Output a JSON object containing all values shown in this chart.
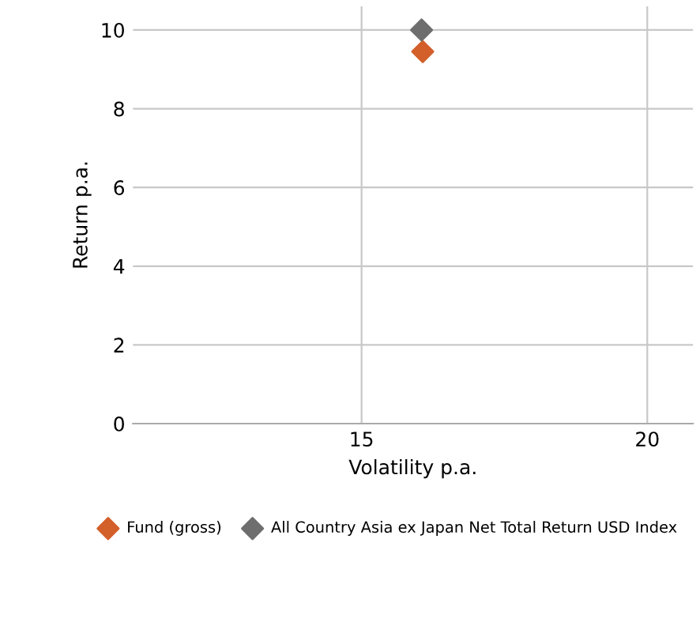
{
  "chart_data": {
    "type": "scatter",
    "xlabel": "Volatility p.a.",
    "ylabel": "Return p.a.",
    "series": [
      {
        "name": "Fund (gross)",
        "color": "#d35f2b",
        "x": [
          16.07
        ],
        "values": [
          9.45
        ]
      },
      {
        "name": "All Country Asia ex Japan Net Total Return USD Index",
        "color": "#6e6e6e",
        "x": [
          16.05
        ],
        "values": [
          10.0
        ]
      }
    ],
    "xlim": [
      11,
      20.8
    ],
    "xticks": [
      15,
      20
    ],
    "ylim": [
      0,
      10.6
    ],
    "yticks": [
      0,
      2,
      4,
      6,
      8,
      10
    ],
    "grid": true,
    "legend": "bottom",
    "marker": "diamond"
  }
}
